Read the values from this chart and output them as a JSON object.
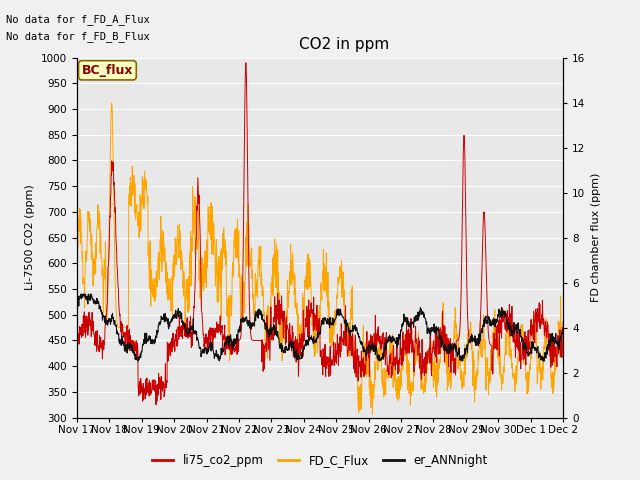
{
  "title": "CO2 in ppm",
  "ylabel_left": "Li-7500 CO2 (ppm)",
  "ylabel_right": "FD chamber flux (ppm)",
  "ylim_left": [
    300,
    1000
  ],
  "ylim_right": [
    0,
    16
  ],
  "xtick_labels": [
    "Nov 17",
    "Nov 18",
    "Nov 19",
    "Nov 20",
    "Nov 21",
    "Nov 22",
    "Nov 23",
    "Nov 24",
    "Nov 25",
    "Nov 26",
    "Nov 27",
    "Nov 28",
    "Nov 29",
    "Nov 30",
    "Dec 1",
    "Dec 2"
  ],
  "annotations": [
    "No data for f_FD_A_Flux",
    "No data for f_FD_B_Flux"
  ],
  "bc_flux_label": "BC_flux",
  "legend_labels": [
    "li75_co2_ppm",
    "FD_C_Flux",
    "er_ANNnight"
  ],
  "line_colors": {
    "li75_co2_ppm": "#cc0000",
    "FD_C_Flux": "#ffa500",
    "er_ANNnight": "#111111"
  },
  "bg_color": "#e8e8e8",
  "grid_color": "#ffffff",
  "fig_bg_color": "#f0f0f0",
  "n_points": 1500,
  "title_fontsize": 11,
  "label_fontsize": 8,
  "tick_fontsize": 7.5,
  "annot_fontsize": 7.5
}
